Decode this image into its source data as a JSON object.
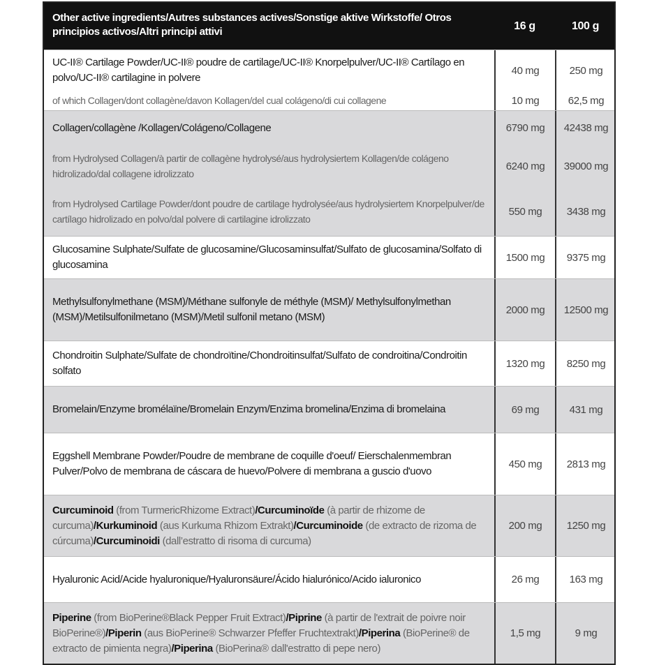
{
  "header": {
    "ingredient_label": "Other active ingredients/Autres substances actives/Sonstige aktive Wirkstoffe/ Otros principios activos/Altri principi attivi",
    "col_16g": "16 g",
    "col_100g": "100 g"
  },
  "colors": {
    "header_bg": "#111111",
    "gray_row": "#d9d9db"
  },
  "rows": [
    {
      "shade": "white",
      "entries": [
        {
          "style": "main",
          "segments": [
            {
              "text": "UC-II® Cartilage Powder/UC-II®  poudre de cartilage/UC-II® Knorpelpulver/UC-II® Cartílago en polvo/UC-II® cartilagine in polvere",
              "bold": false
            }
          ],
          "v16": "40 mg",
          "v100": "250 mg"
        },
        {
          "style": "light",
          "segments": [
            {
              "text": "of which Collagen/dont collagène/davon Kollagen/del cual colágeno/di cui collagene",
              "bold": false
            }
          ],
          "v16": "10 mg",
          "v100": "62,5 mg"
        }
      ]
    },
    {
      "shade": "gray",
      "entries": [
        {
          "style": "main",
          "segments": [
            {
              "text": "Collagen/collagène /Kollagen/Colágeno/Collagene",
              "bold": false
            }
          ],
          "v16": "6790 mg",
          "v100": "42438 mg"
        },
        {
          "style": "light",
          "segments": [
            {
              "text": "from Hydrolysed Collagen/à partir de collagène hydrolysé/aus hydrolysiertem Kollagen/de colágeno hidrolizado/dal collagene idrolizzato",
              "bold": false
            }
          ],
          "v16": "6240 mg",
          "v100": "39000 mg"
        },
        {
          "style": "light",
          "segments": [
            {
              "text": "from Hydrolysed Cartilage Powder/dont poudre de cartilage hydrolysée/aus hydrolysiertem Knorpelpulver/de cartílago hidrolizado en polvo/dal polvere di cartilagine idrolizzato",
              "bold": false
            }
          ],
          "v16": "550 mg",
          "v100": "3438 mg"
        }
      ]
    },
    {
      "shade": "white",
      "entries": [
        {
          "style": "main",
          "segments": [
            {
              "text": "Glucosamine Sulphate/Sulfate de glucosamine/Glucosaminsulfat/Sulfato de glucosamina/Solfato di glucosamina",
              "bold": false
            }
          ],
          "v16": "1500 mg",
          "v100": "9375 mg"
        }
      ]
    },
    {
      "shade": "gray",
      "entries": [
        {
          "style": "main",
          "segments": [
            {
              "text": "Methylsulfonylmethane (MSM)/Méthane sulfonyle de méthyle (MSM)/ Methylsulfonylmethan (MSM)/Metilsulfonilmetano (MSM)/Metil sulfonil metano (MSM)",
              "bold": false
            }
          ],
          "v16": "2000 mg",
          "v100": "12500 mg"
        }
      ]
    },
    {
      "shade": "white",
      "entries": [
        {
          "style": "main",
          "segments": [
            {
              "text": "Chondroitin Sulphate/Sulfate de chondroïtine/Chondroitinsulfat/Sulfato de condroitina/Condroitin solfato",
              "bold": false
            }
          ],
          "v16": "1320 mg",
          "v100": "8250 mg"
        }
      ]
    },
    {
      "shade": "gray",
      "entries": [
        {
          "style": "main",
          "segments": [
            {
              "text": "Bromelain/Enzyme bromélaïne/Bromelain Enzym/Enzima bromelina/Enzima di bromelaina",
              "bold": false
            }
          ],
          "v16": "69 mg",
          "v100": "431 mg"
        }
      ]
    },
    {
      "shade": "white",
      "entries": [
        {
          "style": "main",
          "segments": [
            {
              "text": "Eggshell Membrane Powder/Poudre de membrane de coquille d'oeuf/ Eierschalenmembran Pulver/Polvo de membrana de cáscara de huevo/Polvere di membrana a guscio d'uovo",
              "bold": false
            }
          ],
          "v16": "450 mg",
          "v100": "2813 mg"
        }
      ]
    },
    {
      "shade": "gray",
      "entries": [
        {
          "style": "mixed",
          "segments": [
            {
              "text": "Curcuminoid",
              "bold": true
            },
            {
              "text": " (from TurmericRhizome Extract)",
              "bold": false
            },
            {
              "text": "/Curcuminoïde",
              "bold": true
            },
            {
              "text": " (à partir de rhizome de curcuma)",
              "bold": false
            },
            {
              "text": "/Kurkuminoid",
              "bold": true
            },
            {
              "text": " (aus Kurkuma Rhizom Extrakt)",
              "bold": false
            },
            {
              "text": "/Curcuminoide",
              "bold": true
            },
            {
              "text": " (de extracto de rizoma de cúrcuma)",
              "bold": false
            },
            {
              "text": "/Curcuminoidi",
              "bold": true
            },
            {
              "text": " (dall’estratto di risoma di curcuma)",
              "bold": false
            }
          ],
          "v16": "200 mg",
          "v100": "1250 mg"
        }
      ]
    },
    {
      "shade": "white",
      "entries": [
        {
          "style": "main",
          "segments": [
            {
              "text": "Hyaluronic Acid/Acide hyaluronique/Hyaluronsäure/Ácido hialurónico/Acido ialuronico",
              "bold": false
            }
          ],
          "v16": "26 mg",
          "v100": "163 mg"
        }
      ]
    },
    {
      "shade": "gray",
      "entries": [
        {
          "style": "mixed",
          "segments": [
            {
              "text": "Piperine",
              "bold": true
            },
            {
              "text": " (from BioPerine®Black Pepper Fruit Extract)",
              "bold": false
            },
            {
              "text": "/Piprine",
              "bold": true
            },
            {
              "text": " (à partir de l'extrait de poivre noir BioPerine®)",
              "bold": false
            },
            {
              "text": "/Piperin",
              "bold": true
            },
            {
              "text": " (aus BioPerine® Schwarzer Pfeffer Fruchtextrakt)",
              "bold": false
            },
            {
              "text": "/Piperina",
              "bold": true
            },
            {
              "text": " (BioPerine® de extracto de pimienta negra)",
              "bold": false
            },
            {
              "text": "/Piperina",
              "bold": true
            },
            {
              "text": " (BioPerina® dall'estratto di pepe nero)",
              "bold": false
            }
          ],
          "v16": "1,5 mg",
          "v100": "9 mg"
        }
      ]
    }
  ]
}
